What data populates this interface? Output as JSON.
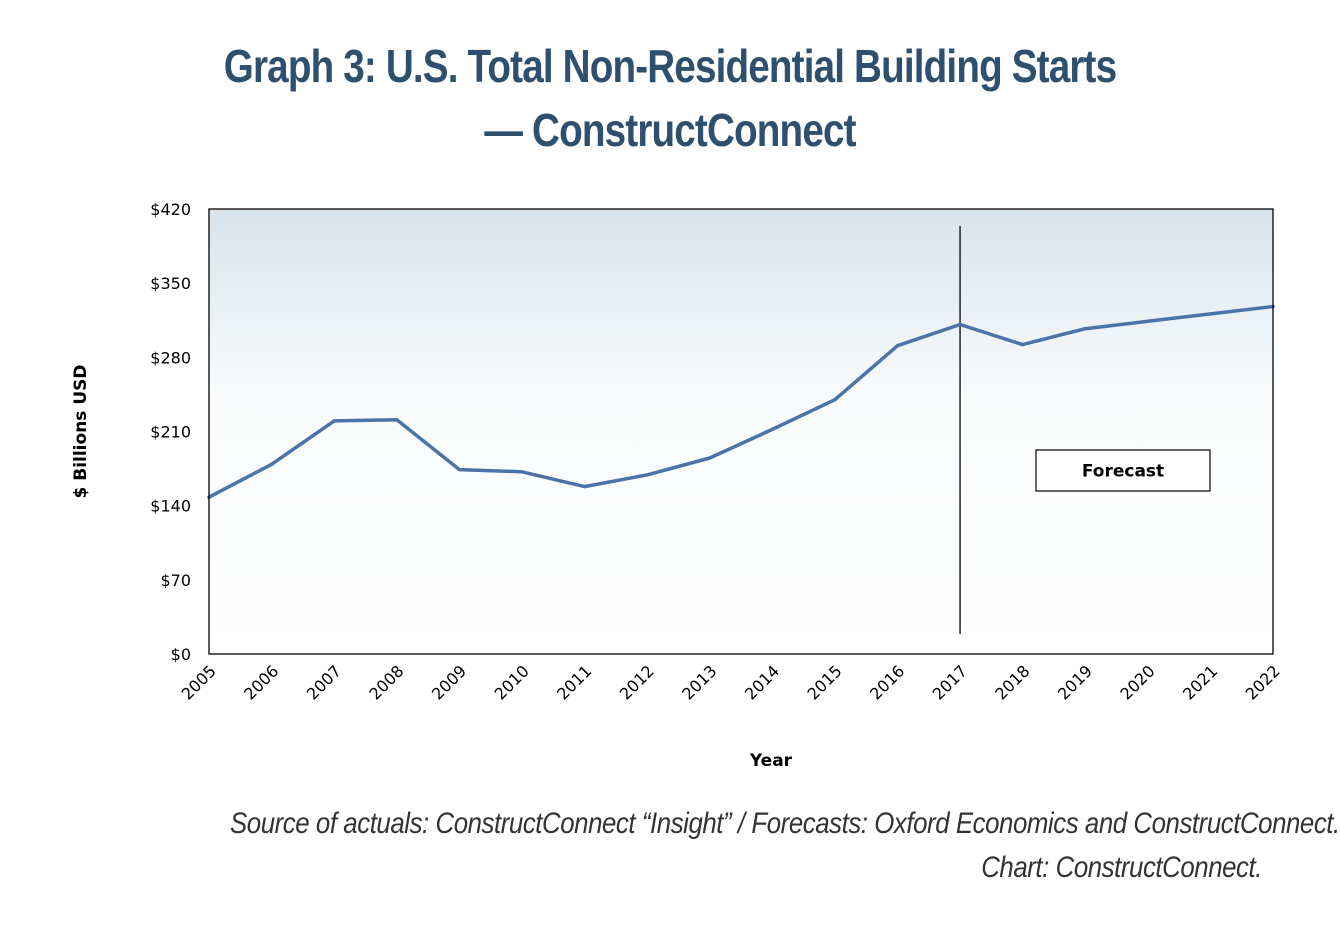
{
  "chart_data": {
    "type": "line",
    "title": "Graph 3: U.S. Total Non-Residential Building Starts — ConstructConnect",
    "xlabel": "Year",
    "ylabel": "$ Billions USD",
    "ylim": [
      0,
      420
    ],
    "yticks": [
      0,
      70,
      140,
      210,
      280,
      350,
      420
    ],
    "ytick_labels": [
      "$0",
      "$70",
      "$140",
      "$210",
      "$280",
      "$350",
      "$420"
    ],
    "categories": [
      "2005",
      "2006",
      "2007",
      "2008",
      "2009",
      "2010",
      "2011",
      "2012",
      "2013",
      "2014",
      "2015",
      "2016",
      "2017",
      "2018",
      "2019",
      "2020",
      "2021",
      "2022"
    ],
    "series": [
      {
        "values": [
          148,
          179,
          220,
          221,
          174,
          172,
          158,
          169,
          185,
          212,
          240,
          291,
          311,
          292,
          307,
          314,
          321,
          328
        ],
        "color": "#4a73a8"
      }
    ],
    "forecast_divider_at": "2017",
    "annotation": "Forecast",
    "grid": false,
    "legend": "none",
    "plot_background": "gradient light steel blue at top fading to white"
  },
  "source": {
    "line1": "Source of actuals: ConstructConnect “Insight” / Forecasts: Oxford Economics and ConstructConnect.",
    "line2": "Chart: ConstructConnect."
  }
}
